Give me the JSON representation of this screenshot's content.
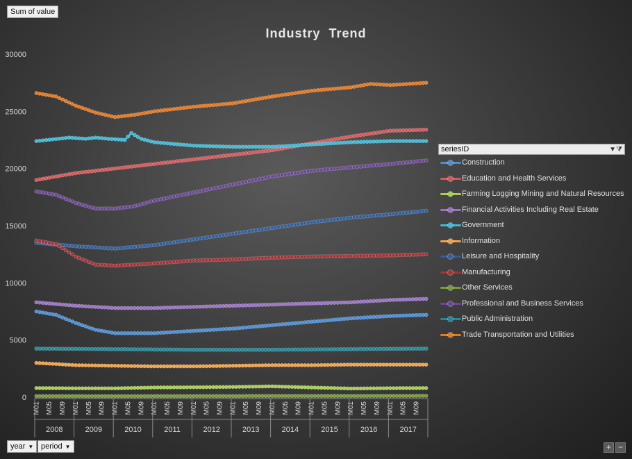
{
  "field_buttons": {
    "value": "Sum of value",
    "year": "year",
    "period": "period"
  },
  "legend_header": "seriesID",
  "chart_data": {
    "type": "line",
    "title": "Industry  Trend",
    "ylim": [
      0,
      30000
    ],
    "yticks": [
      0,
      5000,
      10000,
      15000,
      20000,
      25000,
      30000
    ],
    "years": [
      "2008",
      "2009",
      "2010",
      "2011",
      "2012",
      "2013",
      "2014",
      "2015",
      "2016",
      "2017"
    ],
    "period_labels": [
      "M01",
      "M05",
      "M09"
    ],
    "months_per_year": 12,
    "series": [
      {
        "name": "Construction",
        "color": "#4a8fd8",
        "points": [
          [
            0,
            7500
          ],
          [
            6,
            7200
          ],
          [
            12,
            6500
          ],
          [
            18,
            5900
          ],
          [
            24,
            5600
          ],
          [
            36,
            5600
          ],
          [
            48,
            5800
          ],
          [
            60,
            6000
          ],
          [
            72,
            6300
          ],
          [
            84,
            6600
          ],
          [
            96,
            6900
          ],
          [
            108,
            7100
          ],
          [
            119,
            7200
          ]
        ]
      },
      {
        "name": "Education and Health Services",
        "color": "#d9575a",
        "points": [
          [
            0,
            19000
          ],
          [
            12,
            19600
          ],
          [
            24,
            20000
          ],
          [
            36,
            20400
          ],
          [
            48,
            20800
          ],
          [
            60,
            21200
          ],
          [
            72,
            21600
          ],
          [
            84,
            22200
          ],
          [
            96,
            22800
          ],
          [
            108,
            23300
          ],
          [
            119,
            23400
          ]
        ]
      },
      {
        "name": "Farming Logging Mining and Natural Resources",
        "color": "#a7d050",
        "points": [
          [
            0,
            800
          ],
          [
            12,
            780
          ],
          [
            24,
            780
          ],
          [
            36,
            850
          ],
          [
            48,
            870
          ],
          [
            60,
            900
          ],
          [
            72,
            950
          ],
          [
            84,
            850
          ],
          [
            96,
            760
          ],
          [
            108,
            790
          ],
          [
            119,
            800
          ]
        ]
      },
      {
        "name": "Financial Activities Including Real Estate",
        "color": "#9a72c6",
        "points": [
          [
            0,
            8300
          ],
          [
            12,
            8000
          ],
          [
            24,
            7800
          ],
          [
            36,
            7800
          ],
          [
            48,
            7900
          ],
          [
            60,
            8000
          ],
          [
            72,
            8100
          ],
          [
            84,
            8200
          ],
          [
            96,
            8300
          ],
          [
            108,
            8500
          ],
          [
            119,
            8600
          ]
        ]
      },
      {
        "name": "Government",
        "color": "#3cbad8",
        "points": [
          [
            0,
            22400
          ],
          [
            10,
            22700
          ],
          [
            15,
            22600
          ],
          [
            18,
            22700
          ],
          [
            22,
            22600
          ],
          [
            27,
            22500
          ],
          [
            29,
            23100
          ],
          [
            32,
            22600
          ],
          [
            36,
            22300
          ],
          [
            48,
            22000
          ],
          [
            60,
            21900
          ],
          [
            72,
            21900
          ],
          [
            84,
            22100
          ],
          [
            96,
            22300
          ],
          [
            108,
            22400
          ],
          [
            119,
            22400
          ]
        ]
      },
      {
        "name": "Information",
        "color": "#f3a347",
        "points": [
          [
            0,
            3000
          ],
          [
            12,
            2800
          ],
          [
            24,
            2750
          ],
          [
            36,
            2700
          ],
          [
            48,
            2700
          ],
          [
            60,
            2750
          ],
          [
            72,
            2800
          ],
          [
            84,
            2800
          ],
          [
            96,
            2850
          ],
          [
            108,
            2850
          ],
          [
            119,
            2850
          ]
        ]
      },
      {
        "name": "Leisure and Hospitality",
        "color": "#2f5f9e",
        "points": [
          [
            0,
            13500
          ],
          [
            12,
            13200
          ],
          [
            24,
            13000
          ],
          [
            36,
            13300
          ],
          [
            48,
            13800
          ],
          [
            60,
            14300
          ],
          [
            72,
            14800
          ],
          [
            84,
            15300
          ],
          [
            96,
            15700
          ],
          [
            108,
            16000
          ],
          [
            119,
            16300
          ]
        ]
      },
      {
        "name": "Manufacturing",
        "color": "#a83236",
        "points": [
          [
            0,
            13700
          ],
          [
            6,
            13400
          ],
          [
            12,
            12300
          ],
          [
            18,
            11600
          ],
          [
            24,
            11500
          ],
          [
            36,
            11700
          ],
          [
            48,
            11950
          ],
          [
            60,
            12050
          ],
          [
            72,
            12200
          ],
          [
            84,
            12300
          ],
          [
            96,
            12350
          ],
          [
            108,
            12400
          ],
          [
            119,
            12500
          ]
        ]
      },
      {
        "name": "Other Services",
        "color": "#7a9a3a",
        "points": [
          [
            0,
            100
          ],
          [
            24,
            90
          ],
          [
            48,
            100
          ],
          [
            72,
            110
          ],
          [
            96,
            110
          ],
          [
            119,
            120
          ]
        ]
      },
      {
        "name": "Professional and Business Services",
        "color": "#6a4896",
        "points": [
          [
            0,
            18000
          ],
          [
            6,
            17700
          ],
          [
            12,
            17000
          ],
          [
            18,
            16500
          ],
          [
            24,
            16500
          ],
          [
            30,
            16700
          ],
          [
            36,
            17200
          ],
          [
            48,
            17900
          ],
          [
            60,
            18600
          ],
          [
            72,
            19300
          ],
          [
            84,
            19800
          ],
          [
            96,
            20100
          ],
          [
            108,
            20400
          ],
          [
            119,
            20700
          ]
        ]
      },
      {
        "name": "Public Administration",
        "color": "#1f8a9a",
        "points": [
          [
            0,
            4250
          ],
          [
            24,
            4200
          ],
          [
            48,
            4150
          ],
          [
            72,
            4150
          ],
          [
            96,
            4200
          ],
          [
            119,
            4250
          ]
        ]
      },
      {
        "name": "Trade Transportation and Utilities",
        "color": "#e8781e",
        "points": [
          [
            0,
            26600
          ],
          [
            6,
            26300
          ],
          [
            12,
            25500
          ],
          [
            18,
            24900
          ],
          [
            24,
            24500
          ],
          [
            30,
            24700
          ],
          [
            36,
            25000
          ],
          [
            48,
            25400
          ],
          [
            60,
            25700
          ],
          [
            72,
            26300
          ],
          [
            84,
            26800
          ],
          [
            96,
            27100
          ],
          [
            102,
            27400
          ],
          [
            108,
            27300
          ],
          [
            119,
            27500
          ]
        ]
      }
    ]
  }
}
